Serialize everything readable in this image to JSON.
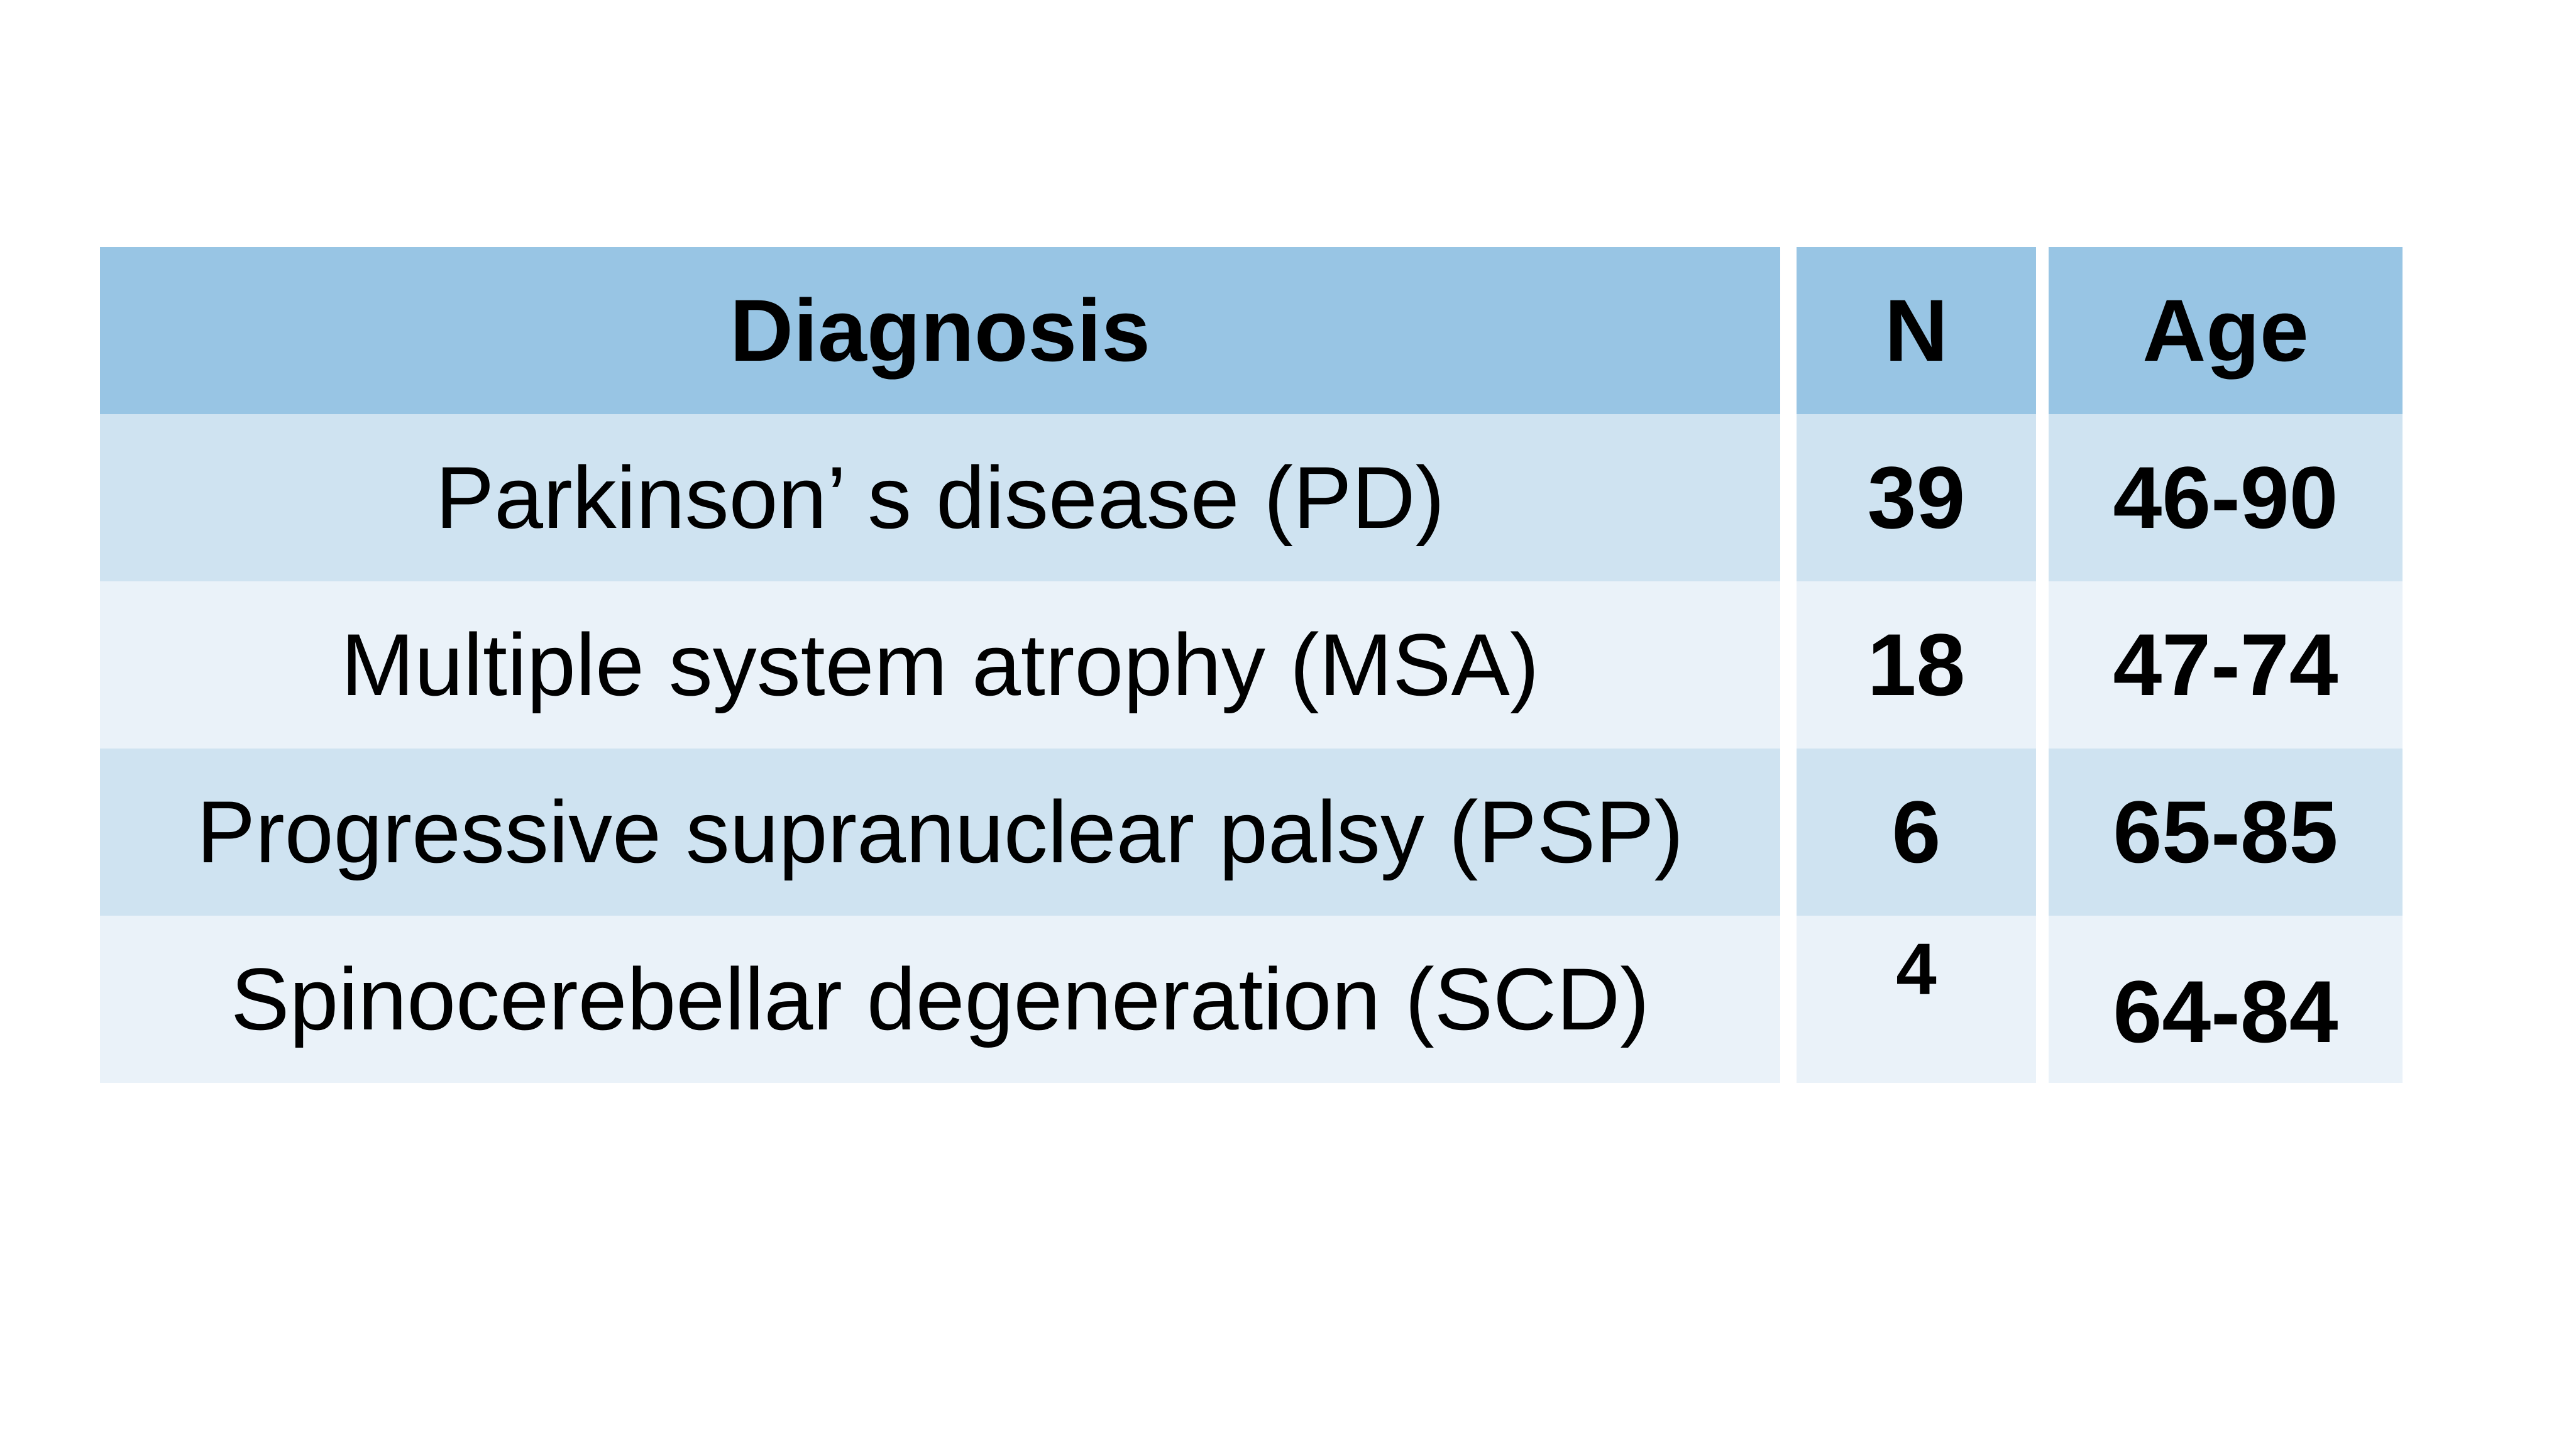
{
  "table": {
    "columns": [
      {
        "label": "Diagnosis"
      },
      {
        "label": "N"
      },
      {
        "label": "Age"
      }
    ],
    "rows": [
      {
        "diagnosis": "Parkinson’ s disease (PD)",
        "n": "39",
        "age": "46-90"
      },
      {
        "diagnosis": "Multiple system atrophy (MSA)",
        "n": "18",
        "age": "47-74"
      },
      {
        "diagnosis": "Progressive supranuclear palsy (PSP)",
        "n": "6",
        "age": "65-85"
      },
      {
        "diagnosis": "Spinocerebellar degeneration (SCD)",
        "n": "4",
        "age": "64-84"
      }
    ],
    "colors": {
      "header_bg": "#98c5e4",
      "row_odd_bg": "#cfe3f1",
      "row_even_bg": "#eaf2f9",
      "text": "#000000",
      "page_bg": "#ffffff"
    }
  }
}
